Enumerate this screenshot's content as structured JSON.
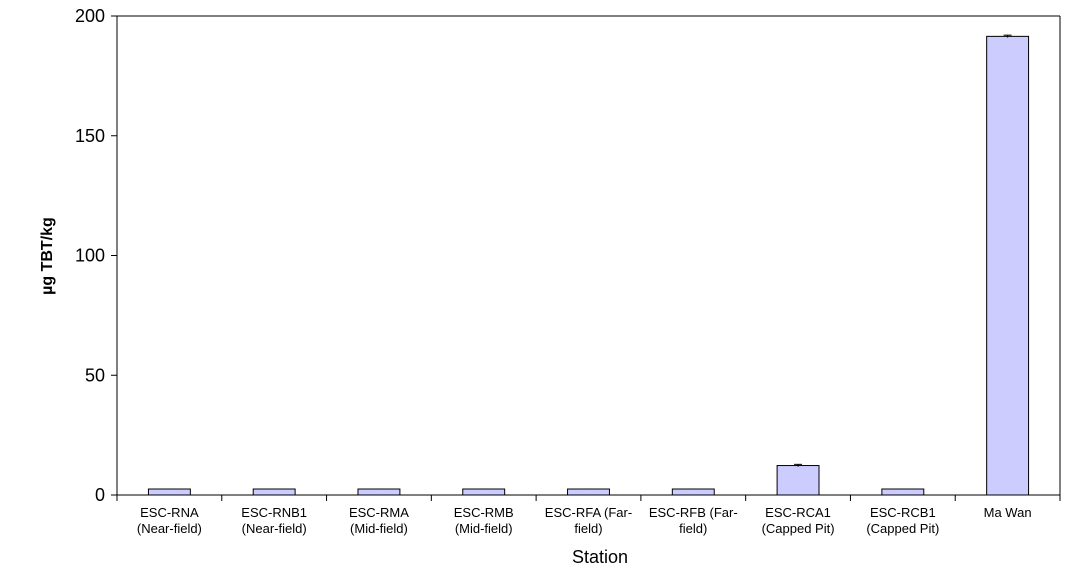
{
  "chart_data": {
    "type": "bar",
    "title": "",
    "xlabel": "Station",
    "ylabel": "µg TBT/kg",
    "ylim": [
      0,
      200
    ],
    "yticks": [
      0,
      50,
      100,
      150,
      200
    ],
    "grid": false,
    "legend": "none",
    "categories": [
      [
        "ESC-RNA",
        "(Near-field)"
      ],
      [
        "ESC-RNB1",
        "(Near-field)"
      ],
      [
        "ESC-RMA",
        "(Mid-field)"
      ],
      [
        "ESC-RMB",
        "(Mid-field)"
      ],
      [
        "ESC-RFA (Far-",
        "field)"
      ],
      [
        "ESC-RFB (Far-",
        "field)"
      ],
      [
        "ESC-RCA1",
        "(Capped Pit)"
      ],
      [
        "ESC-RCB1",
        "(Capped Pit)"
      ],
      [
        "Ma Wan",
        ""
      ]
    ],
    "values": [
      2.5,
      2.5,
      2.5,
      2.5,
      2.5,
      2.5,
      12.3,
      2.5,
      191.5
    ],
    "errors": [
      0,
      0,
      0,
      0,
      0,
      0,
      0.5,
      0,
      0.5
    ],
    "colors": {
      "bar_fill": "#ccccff",
      "bar_stroke": "#000000",
      "axis": "#000000"
    }
  }
}
